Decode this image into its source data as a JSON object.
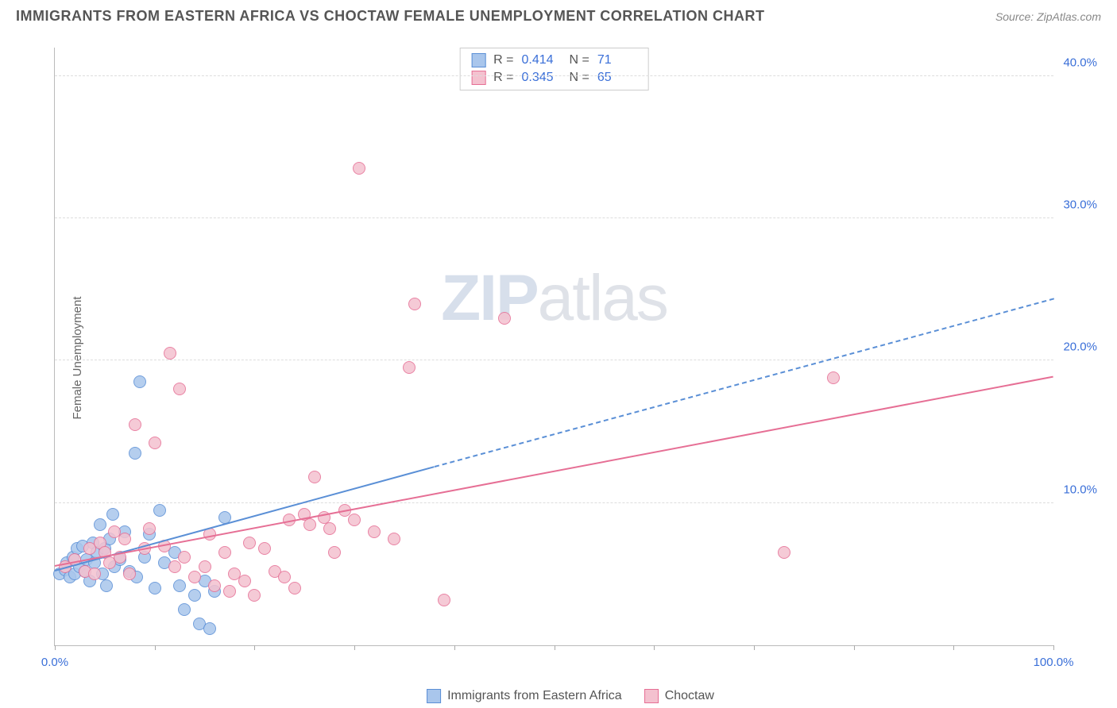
{
  "header": {
    "title": "IMMIGRANTS FROM EASTERN AFRICA VS CHOCTAW FEMALE UNEMPLOYMENT CORRELATION CHART",
    "source": "Source: ZipAtlas.com"
  },
  "watermark": {
    "bold": "ZIP",
    "light": "atlas"
  },
  "chart": {
    "type": "scatter",
    "ylabel": "Female Unemployment",
    "background_color": "#ffffff",
    "grid_color": "#dddddd",
    "axis_color": "#bbbbbb",
    "tick_label_color": "#3a6fd8",
    "label_fontsize": 15,
    "tick_fontsize": 15,
    "xlim": [
      0,
      100
    ],
    "ylim": [
      0,
      42
    ],
    "x_ticks": [
      0,
      10,
      20,
      30,
      40,
      50,
      60,
      70,
      80,
      90,
      100
    ],
    "x_tick_labels": {
      "0": "0.0%",
      "100": "100.0%"
    },
    "y_ticks": [
      10,
      20,
      30,
      40
    ],
    "y_tick_labels": {
      "10": "10.0%",
      "20": "20.0%",
      "30": "30.0%",
      "40": "40.0%"
    },
    "series": [
      {
        "name": "Immigrants from Eastern Africa",
        "fill_color": "#a9c6ec",
        "stroke_color": "#5a8fd6",
        "marker_size": 16,
        "trend": {
          "x1": 0,
          "y1": 5.2,
          "x2": 38,
          "y2": 12.5,
          "dash_to_x": 100,
          "dash_to_y": 24.3,
          "width": 2
        },
        "stats": {
          "R": "0.414",
          "N": "71"
        },
        "points": [
          [
            0.5,
            5.0
          ],
          [
            1,
            5.3
          ],
          [
            1.2,
            5.8
          ],
          [
            1.5,
            4.8
          ],
          [
            1.8,
            6.2
          ],
          [
            2,
            5.0
          ],
          [
            2.2,
            6.8
          ],
          [
            2.5,
            5.5
          ],
          [
            2.8,
            7.0
          ],
          [
            3,
            5.2
          ],
          [
            3.2,
            6.0
          ],
          [
            3.5,
            4.5
          ],
          [
            3.8,
            7.2
          ],
          [
            4,
            5.8
          ],
          [
            4.2,
            6.5
          ],
          [
            4.5,
            8.5
          ],
          [
            4.8,
            5.0
          ],
          [
            5,
            6.8
          ],
          [
            5.2,
            4.2
          ],
          [
            5.5,
            7.5
          ],
          [
            5.8,
            9.2
          ],
          [
            6,
            5.5
          ],
          [
            6.5,
            6.0
          ],
          [
            7,
            8.0
          ],
          [
            7.5,
            5.2
          ],
          [
            8,
            13.5
          ],
          [
            8.2,
            4.8
          ],
          [
            8.5,
            18.5
          ],
          [
            9,
            6.2
          ],
          [
            9.5,
            7.8
          ],
          [
            10,
            4.0
          ],
          [
            10.5,
            9.5
          ],
          [
            11,
            5.8
          ],
          [
            12,
            6.5
          ],
          [
            12.5,
            4.2
          ],
          [
            13,
            2.5
          ],
          [
            14,
            3.5
          ],
          [
            14.5,
            1.5
          ],
          [
            15,
            4.5
          ],
          [
            15.5,
            1.2
          ],
          [
            16,
            3.8
          ],
          [
            17,
            9.0
          ]
        ]
      },
      {
        "name": "Choctaw",
        "fill_color": "#f4c1cf",
        "stroke_color": "#e66f95",
        "marker_size": 16,
        "trend": {
          "x1": 0,
          "y1": 5.5,
          "x2": 100,
          "y2": 18.8,
          "width": 2
        },
        "stats": {
          "R": "0.345",
          "N": "65"
        },
        "points": [
          [
            1,
            5.5
          ],
          [
            2,
            6.0
          ],
          [
            3,
            5.2
          ],
          [
            3.5,
            6.8
          ],
          [
            4,
            5.0
          ],
          [
            4.5,
            7.2
          ],
          [
            5,
            6.5
          ],
          [
            5.5,
            5.8
          ],
          [
            6,
            8.0
          ],
          [
            6.5,
            6.2
          ],
          [
            7,
            7.5
          ],
          [
            7.5,
            5.0
          ],
          [
            8,
            15.5
          ],
          [
            9,
            6.8
          ],
          [
            9.5,
            8.2
          ],
          [
            10,
            14.2
          ],
          [
            11,
            7.0
          ],
          [
            11.5,
            20.5
          ],
          [
            12,
            5.5
          ],
          [
            12.5,
            18.0
          ],
          [
            13,
            6.2
          ],
          [
            14,
            4.8
          ],
          [
            15,
            5.5
          ],
          [
            15.5,
            7.8
          ],
          [
            16,
            4.2
          ],
          [
            17,
            6.5
          ],
          [
            17.5,
            3.8
          ],
          [
            18,
            5.0
          ],
          [
            19,
            4.5
          ],
          [
            19.5,
            7.2
          ],
          [
            20,
            3.5
          ],
          [
            21,
            6.8
          ],
          [
            22,
            5.2
          ],
          [
            23,
            4.8
          ],
          [
            23.5,
            8.8
          ],
          [
            24,
            4.0
          ],
          [
            25,
            9.2
          ],
          [
            25.5,
            8.5
          ],
          [
            26,
            11.8
          ],
          [
            27,
            9.0
          ],
          [
            27.5,
            8.2
          ],
          [
            28,
            6.5
          ],
          [
            29,
            9.5
          ],
          [
            30,
            8.8
          ],
          [
            30.5,
            33.5
          ],
          [
            32,
            8.0
          ],
          [
            34,
            7.5
          ],
          [
            35.5,
            19.5
          ],
          [
            36,
            24.0
          ],
          [
            39,
            3.2
          ],
          [
            45,
            23.0
          ],
          [
            73,
            6.5
          ],
          [
            78,
            18.8
          ]
        ]
      }
    ],
    "legend": {
      "position": "bottom",
      "items": [
        {
          "label": "Immigrants from Eastern Africa",
          "fill": "#a9c6ec",
          "stroke": "#5a8fd6"
        },
        {
          "label": "Choctaw",
          "fill": "#f4c1cf",
          "stroke": "#e66f95"
        }
      ]
    }
  }
}
